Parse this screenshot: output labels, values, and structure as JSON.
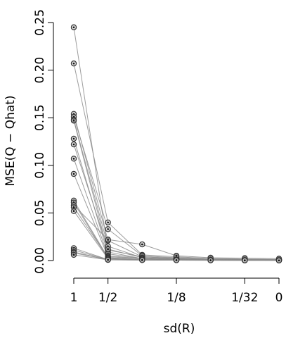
{
  "chart_data": {
    "type": "line",
    "xlabel": "sd(R)",
    "ylabel": "MSE(Q − Qhat)",
    "x_ticks": [
      {
        "pos": 0,
        "label": "1"
      },
      {
        "pos": 1,
        "label": "1/2"
      },
      {
        "pos": 3,
        "label": "1/8"
      },
      {
        "pos": 5,
        "label": "1/32"
      },
      {
        "pos": 6,
        "label": "0"
      }
    ],
    "x_positions": [
      0,
      1,
      2,
      3,
      4,
      5,
      6
    ],
    "x_values": [
      "1",
      "1/2",
      "1/4",
      "1/8",
      "1/16",
      "1/32",
      "0"
    ],
    "xlim": [
      0,
      6
    ],
    "ylim": [
      0,
      0.25
    ],
    "y_ticks": [
      0.0,
      0.05,
      0.1,
      0.15,
      0.2,
      0.25
    ],
    "y_tick_labels": [
      "0.00",
      "0.05",
      "0.10",
      "0.15",
      "0.20",
      "0.25"
    ],
    "grid": false,
    "series": [
      {
        "values": [
          0.245,
          0.011,
          0.004,
          0.0025,
          0.0012,
          0.001,
          0.0008
        ]
      },
      {
        "values": [
          0.207,
          0.04,
          0.006,
          0.004,
          0.002,
          0.0015,
          0.001
        ]
      },
      {
        "values": [
          0.154,
          0.021,
          0.004,
          0.002,
          0.0011,
          0.0008,
          0.0006
        ]
      },
      {
        "values": [
          0.151,
          0.033,
          0.005,
          0.003,
          0.002,
          0.0015,
          0.0012
        ]
      },
      {
        "values": [
          0.148,
          0.015,
          0.003,
          0.0015,
          0.001,
          0.0008,
          0.0006
        ]
      },
      {
        "values": [
          0.147,
          0.009,
          0.002,
          0.001,
          0.0008,
          0.0006,
          0.0005
        ]
      },
      {
        "values": [
          0.128,
          0.007,
          0.002,
          0.001,
          0.0007,
          0.0005,
          0.0004
        ]
      },
      {
        "values": [
          0.122,
          0.012,
          0.003,
          0.0015,
          0.001,
          0.0008,
          0.0006
        ]
      },
      {
        "values": [
          0.107,
          0.005,
          0.002,
          0.001,
          0.0007,
          0.0005,
          0.0004
        ]
      },
      {
        "values": [
          0.091,
          0.004,
          0.002,
          0.001,
          0.0006,
          0.0005,
          0.0004
        ]
      },
      {
        "values": [
          0.063,
          0.003,
          0.001,
          0.0008,
          0.0006,
          0.0004,
          0.0003
        ]
      },
      {
        "values": [
          0.061,
          0.002,
          0.001,
          0.0006,
          0.0005,
          0.0004,
          0.0003
        ]
      },
      {
        "values": [
          0.058,
          0.022,
          0.017,
          0.005,
          0.003,
          0.0025,
          0.002
        ]
      },
      {
        "values": [
          0.056,
          0.003,
          0.001,
          0.0008,
          0.0005,
          0.0004,
          0.0003
        ]
      },
      {
        "values": [
          0.052,
          0.002,
          0.001,
          0.0006,
          0.0005,
          0.0004,
          0.0003
        ]
      },
      {
        "values": [
          0.013,
          0.001,
          0.0008,
          0.0005,
          0.0004,
          0.0003,
          0.0002
        ]
      },
      {
        "values": [
          0.011,
          0.001,
          0.0007,
          0.0005,
          0.0004,
          0.0003,
          0.0002
        ]
      },
      {
        "values": [
          0.009,
          0.0008,
          0.0006,
          0.0004,
          0.0003,
          0.0002,
          0.0002
        ]
      },
      {
        "values": [
          0.008,
          0.0009,
          0.0006,
          0.0004,
          0.0003,
          0.0002,
          0.0002
        ]
      },
      {
        "values": [
          0.006,
          0.0007,
          0.0005,
          0.0004,
          0.0003,
          0.0002,
          0.0001
        ]
      }
    ]
  }
}
